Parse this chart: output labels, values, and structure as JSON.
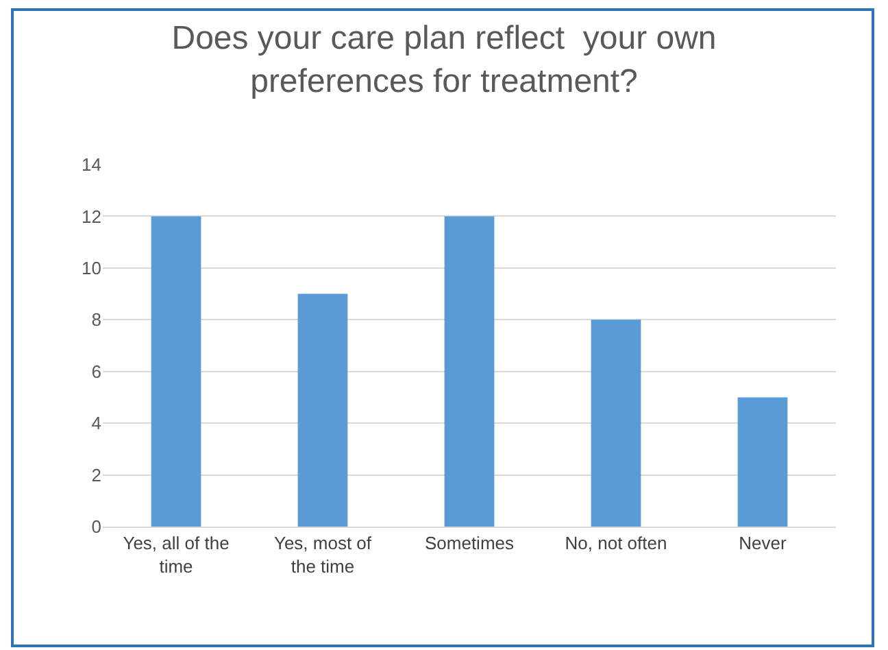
{
  "chart_data": {
    "type": "bar",
    "title": "Does your care plan reflect  your own preferences for treatment?",
    "categories": [
      "Yes, all of the time",
      "Yes, most of the time",
      "Sometimes",
      "No, not often",
      "Never"
    ],
    "values": [
      12,
      9,
      12,
      8,
      5
    ],
    "color": "#5b9bd5",
    "ylim": [
      0,
      14
    ],
    "yticks": [
      0,
      2,
      4,
      6,
      8,
      10,
      12,
      14
    ],
    "grid": "y"
  }
}
